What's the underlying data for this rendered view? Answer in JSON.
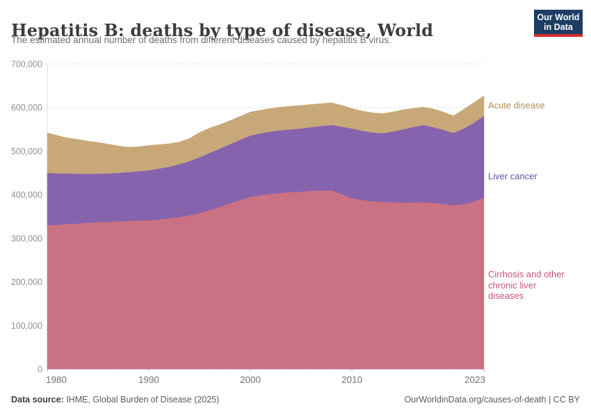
{
  "header": {
    "title": "Hepatitis B: deaths by type of disease, World",
    "subtitle": "The estimated annual number of deaths from different diseases caused by hepatitis B virus.",
    "logo_line1": "Our World",
    "logo_line2": "in Data"
  },
  "footer": {
    "datasource_label": "Data source:",
    "datasource_text": " IHME, Global Burden of Disease (2025)",
    "right": "OurWorldinData.org/causes-of-death | CC BY"
  },
  "chart_data": {
    "type": "area",
    "stacked": true,
    "title": "Hepatitis B: deaths by type of disease, World",
    "xlabel": "",
    "ylabel": "",
    "ylim": [
      0,
      700000
    ],
    "grid": "dashed-horizontal",
    "legend_position": "right-of-plot",
    "x": [
      1980,
      1981,
      1982,
      1983,
      1984,
      1985,
      1986,
      1987,
      1988,
      1989,
      1990,
      1991,
      1992,
      1993,
      1994,
      1995,
      1996,
      1997,
      1998,
      1999,
      2000,
      2001,
      2002,
      2003,
      2004,
      2005,
      2006,
      2007,
      2008,
      2009,
      2010,
      2011,
      2012,
      2013,
      2014,
      2015,
      2016,
      2017,
      2018,
      2019,
      2020,
      2021,
      2022,
      2023
    ],
    "x_ticks": [
      {
        "value": 1980,
        "label": "1980"
      },
      {
        "value": 1990,
        "label": "1990"
      },
      {
        "value": 2000,
        "label": "2000"
      },
      {
        "value": 2010,
        "label": "2010"
      },
      {
        "value": 2023,
        "label": "2023"
      }
    ],
    "y_ticks": [
      {
        "value": 0,
        "label": "0"
      },
      {
        "value": 100000,
        "label": "100,000"
      },
      {
        "value": 200000,
        "label": "200,000"
      },
      {
        "value": 300000,
        "label": "300,000"
      },
      {
        "value": 400000,
        "label": "400,000"
      },
      {
        "value": 500000,
        "label": "500,000"
      },
      {
        "value": 600000,
        "label": "600,000"
      },
      {
        "value": 700000,
        "label": "700,000"
      }
    ],
    "series": [
      {
        "name": "Cirrhosis and other chronic liver diseases",
        "color": "#cb7184",
        "label_color": "#c4546e",
        "values": [
          330000,
          331000,
          333000,
          334000,
          336000,
          337000,
          338000,
          339000,
          340000,
          341000,
          341000,
          343000,
          346000,
          349000,
          353000,
          358000,
          365000,
          372000,
          380000,
          388000,
          395000,
          399000,
          402000,
          404000,
          406000,
          407000,
          409000,
          410000,
          410000,
          401000,
          392000,
          388000,
          385000,
          384000,
          383000,
          382000,
          382000,
          383000,
          381000,
          379000,
          376000,
          378000,
          384000,
          393000
        ]
      },
      {
        "name": "Liver cancer",
        "color": "#8663ad",
        "label_color": "#6d4da0",
        "values": [
          120000,
          118000,
          116000,
          114000,
          112000,
          111000,
          111000,
          111000,
          112000,
          113000,
          115000,
          117000,
          118000,
          121000,
          124000,
          128000,
          131000,
          134000,
          136000,
          138000,
          141000,
          142000,
          143000,
          144000,
          144000,
          145000,
          146000,
          148000,
          150000,
          155000,
          160000,
          159000,
          158000,
          157000,
          162000,
          168000,
          173000,
          177000,
          174000,
          170000,
          166000,
          174000,
          181000,
          188000
        ]
      },
      {
        "name": "Acute disease",
        "color": "#c8a878",
        "label_color": "#b08957",
        "values": [
          92000,
          87000,
          81000,
          79000,
          75000,
          72000,
          67000,
          62000,
          57000,
          56000,
          57000,
          55000,
          53000,
          51000,
          52000,
          57000,
          57000,
          55000,
          54000,
          54000,
          54000,
          53000,
          53000,
          53000,
          53000,
          53000,
          52000,
          51000,
          51000,
          49000,
          46000,
          45000,
          45000,
          45000,
          45000,
          45000,
          43000,
          41000,
          42000,
          41000,
          39000,
          44000,
          46000,
          46000
        ]
      }
    ]
  }
}
